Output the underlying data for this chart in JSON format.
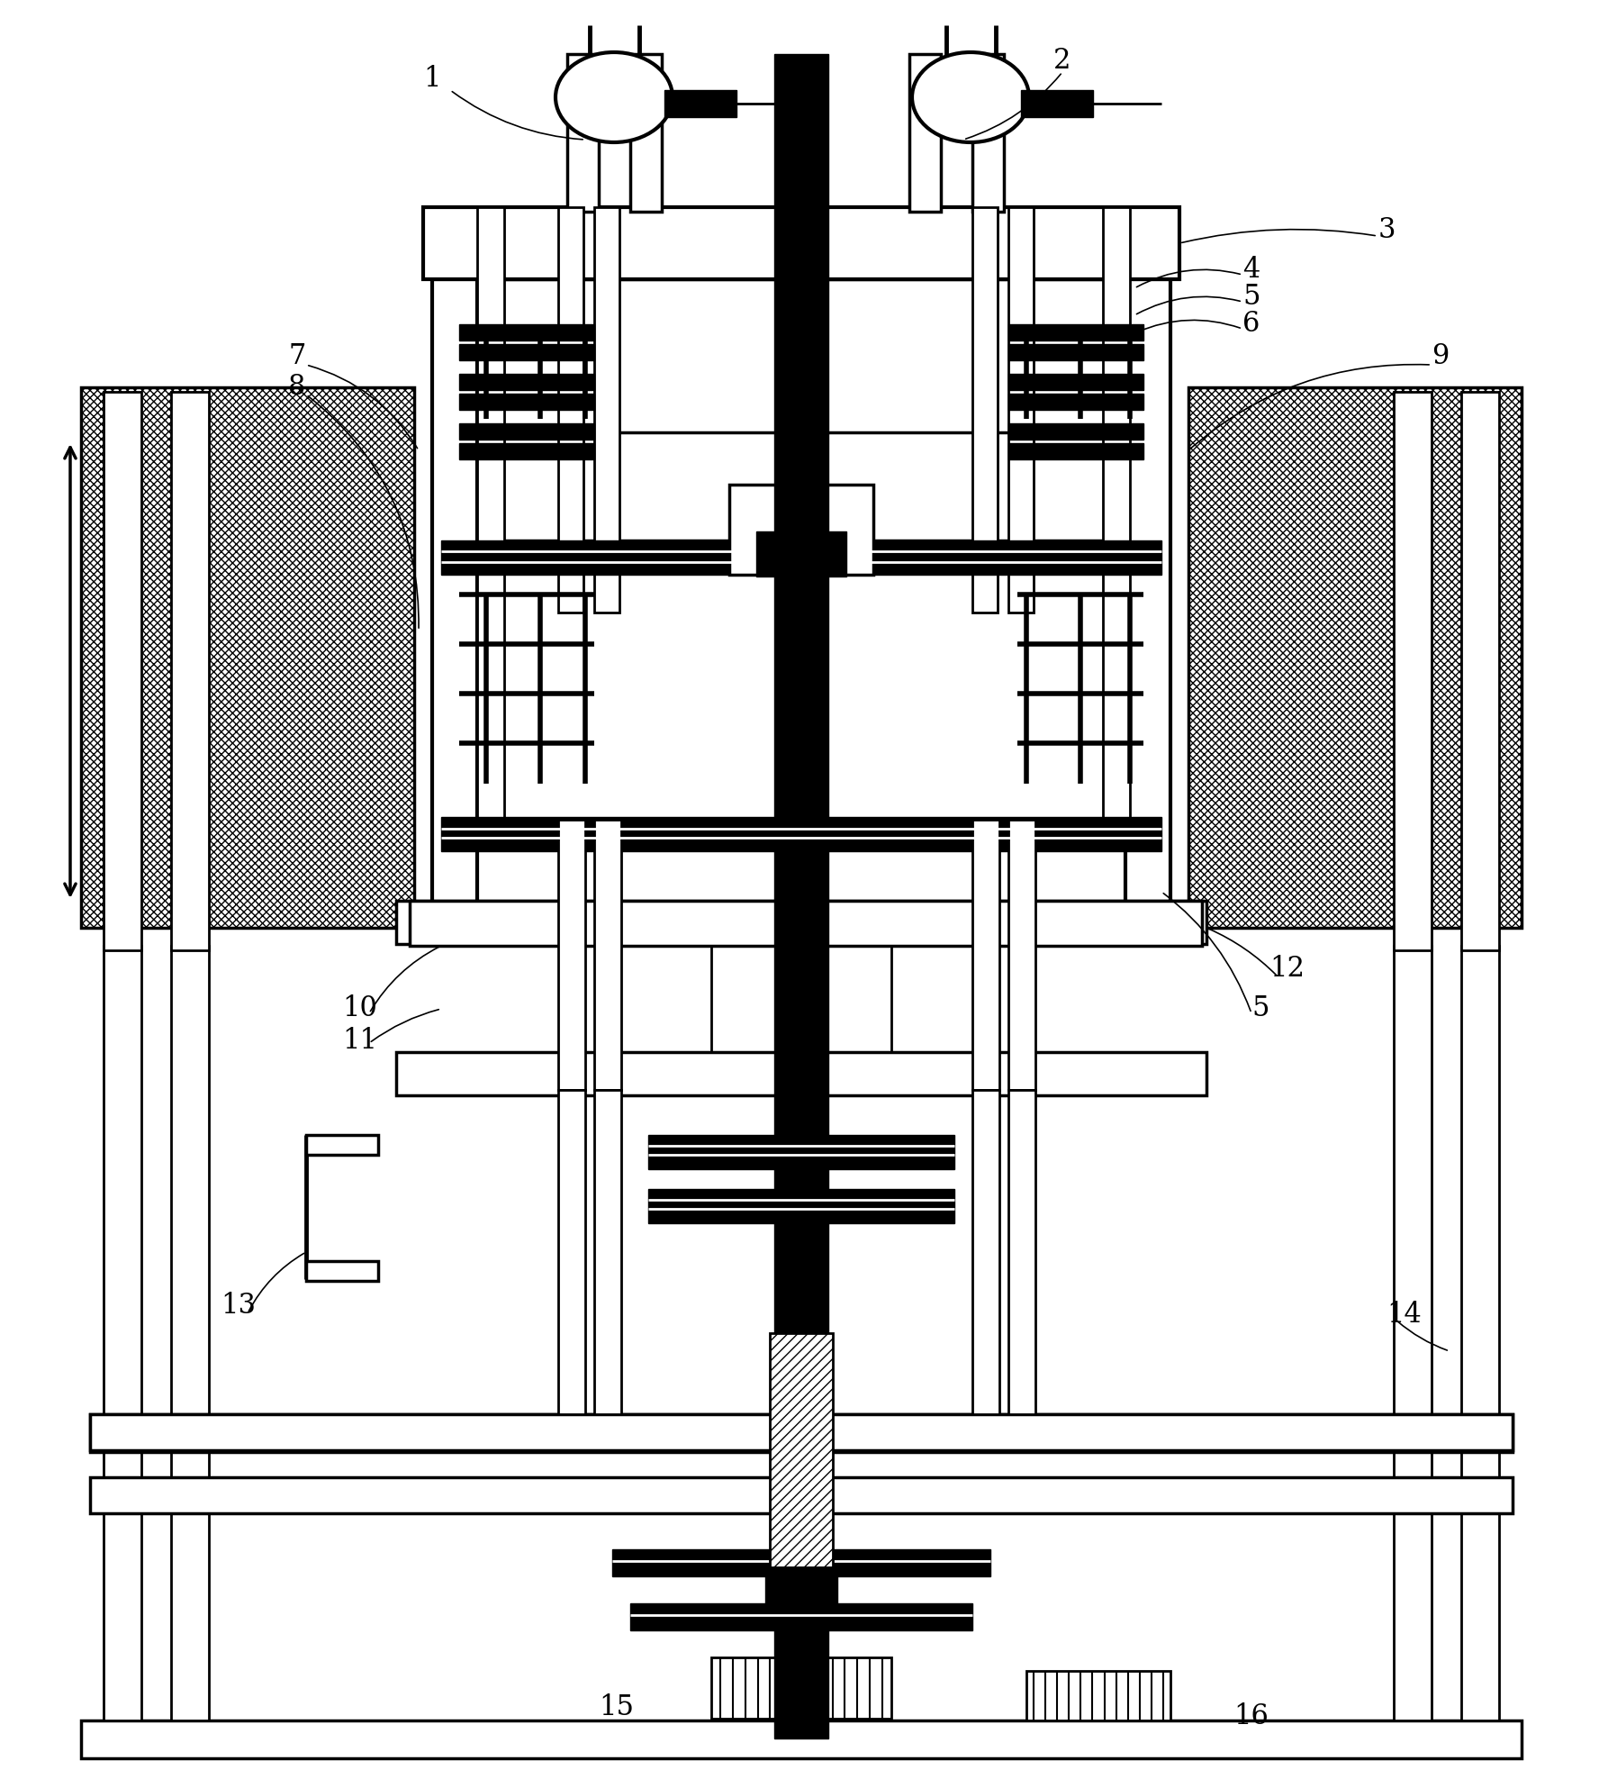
{
  "fig_w": 17.86,
  "fig_h": 19.75,
  "dpi": 100,
  "black": "#000000",
  "white": "#ffffff"
}
